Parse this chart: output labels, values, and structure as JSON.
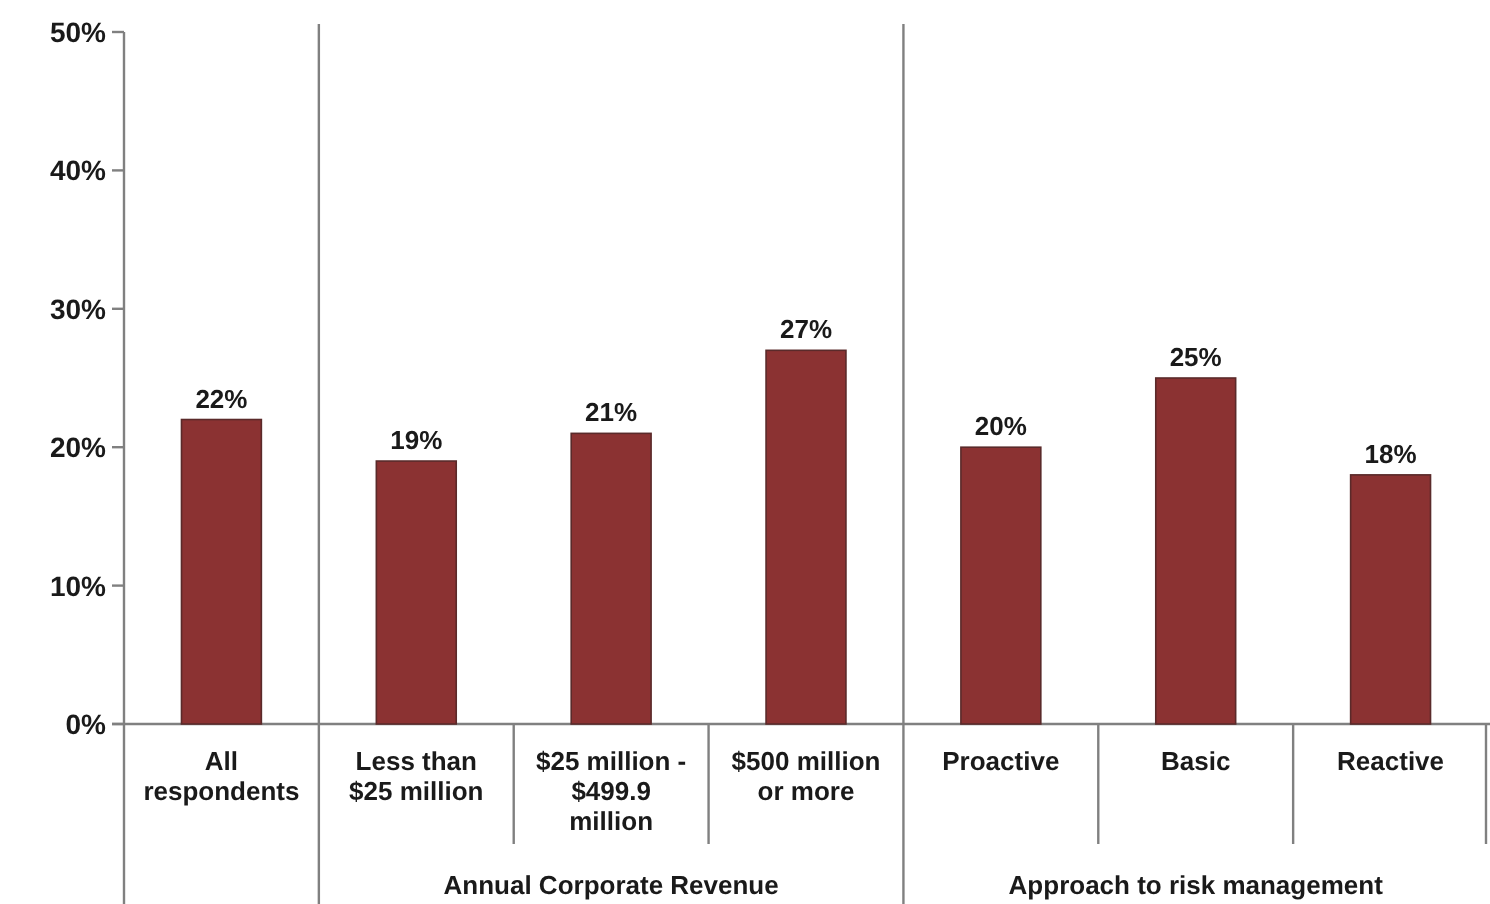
{
  "chart_data": {
    "type": "bar",
    "categories": [
      "All respondents",
      "Less than $25 million",
      "$25 million - $499.9 million",
      "$500 million or more",
      "Proactive",
      "Basic",
      "Reactive"
    ],
    "values": [
      22,
      19,
      21,
      27,
      20,
      25,
      18
    ],
    "value_labels": [
      "22%",
      "19%",
      "21%",
      "27%",
      "20%",
      "25%",
      "18%"
    ],
    "color": "#8b3232",
    "ylim": [
      0,
      50
    ],
    "yticks": [
      {
        "value": 0,
        "label": "0%"
      },
      {
        "value": 10,
        "label": "10%"
      },
      {
        "value": 20,
        "label": "20%"
      },
      {
        "value": 30,
        "label": "30%"
      },
      {
        "value": 40,
        "label": "40%"
      },
      {
        "value": 50,
        "label": "50%"
      }
    ],
    "annotations": [
      "Annual Corporate Revenue",
      "Approach to risk management"
    ]
  }
}
